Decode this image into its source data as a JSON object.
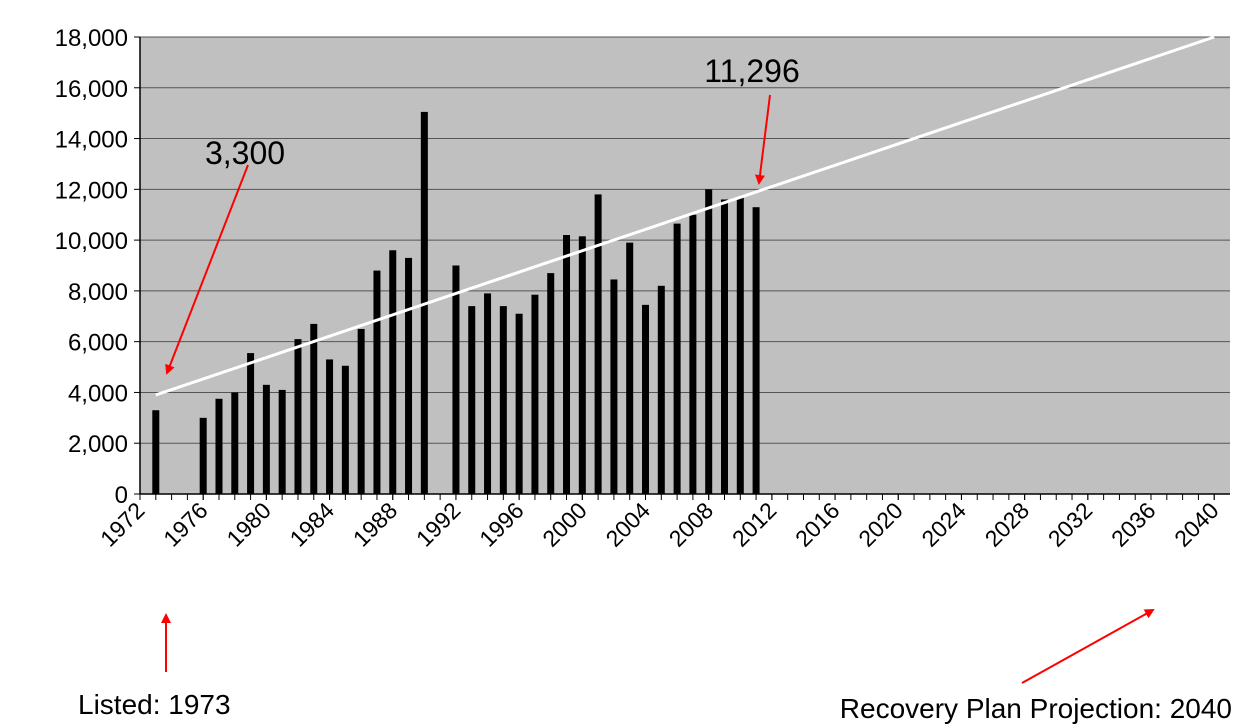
{
  "chart_data": {
    "type": "bar",
    "x": [
      1973,
      1976,
      1977,
      1978,
      1979,
      1980,
      1981,
      1982,
      1983,
      1984,
      1985,
      1986,
      1987,
      1988,
      1989,
      1990,
      1992,
      1993,
      1994,
      1995,
      1996,
      1997,
      1998,
      1999,
      2000,
      2001,
      2002,
      2003,
      2004,
      2005,
      2006,
      2007,
      2008,
      2009,
      2010,
      2011
    ],
    "values": [
      3300,
      3000,
      3750,
      4000,
      5550,
      4300,
      4100,
      6100,
      6700,
      5300,
      5050,
      6500,
      8800,
      9600,
      9300,
      15050,
      9000,
      7400,
      7900,
      7400,
      7100,
      7850,
      8700,
      10200,
      10150,
      11800,
      8450,
      9900,
      7450,
      8200,
      10650,
      11000,
      12000,
      11600,
      11700,
      11296
    ],
    "color": "#000000",
    "trend": {
      "x": [
        1973,
        2040
      ],
      "values": [
        3900,
        18000
      ],
      "color": "#ffffff"
    },
    "xlim": [
      1972,
      2041
    ],
    "xticks": [
      1972,
      1976,
      1980,
      1984,
      1988,
      1992,
      1996,
      2000,
      2004,
      2008,
      2012,
      2016,
      2020,
      2024,
      2028,
      2032,
      2036,
      2040
    ],
    "ylim": [
      0,
      18000
    ],
    "yticks": [
      0,
      {
        "value": 2000,
        "label": "2,000"
      },
      {
        "value": 4000,
        "label": "4,000"
      },
      {
        "value": 6000,
        "label": "6,000"
      },
      {
        "value": 8000,
        "label": "8,000"
      },
      {
        "value": 10000,
        "label": "10,000"
      },
      {
        "value": 12000,
        "label": "12,000"
      },
      {
        "value": 14000,
        "label": "14,000"
      },
      {
        "value": 16000,
        "label": "16,000"
      },
      {
        "value": 18000,
        "label": "18,000"
      }
    ],
    "grid": true,
    "annotations": [
      "3,300",
      "11,296",
      "Listed: 1973",
      "Recovery Plan Projection: 2040"
    ]
  }
}
